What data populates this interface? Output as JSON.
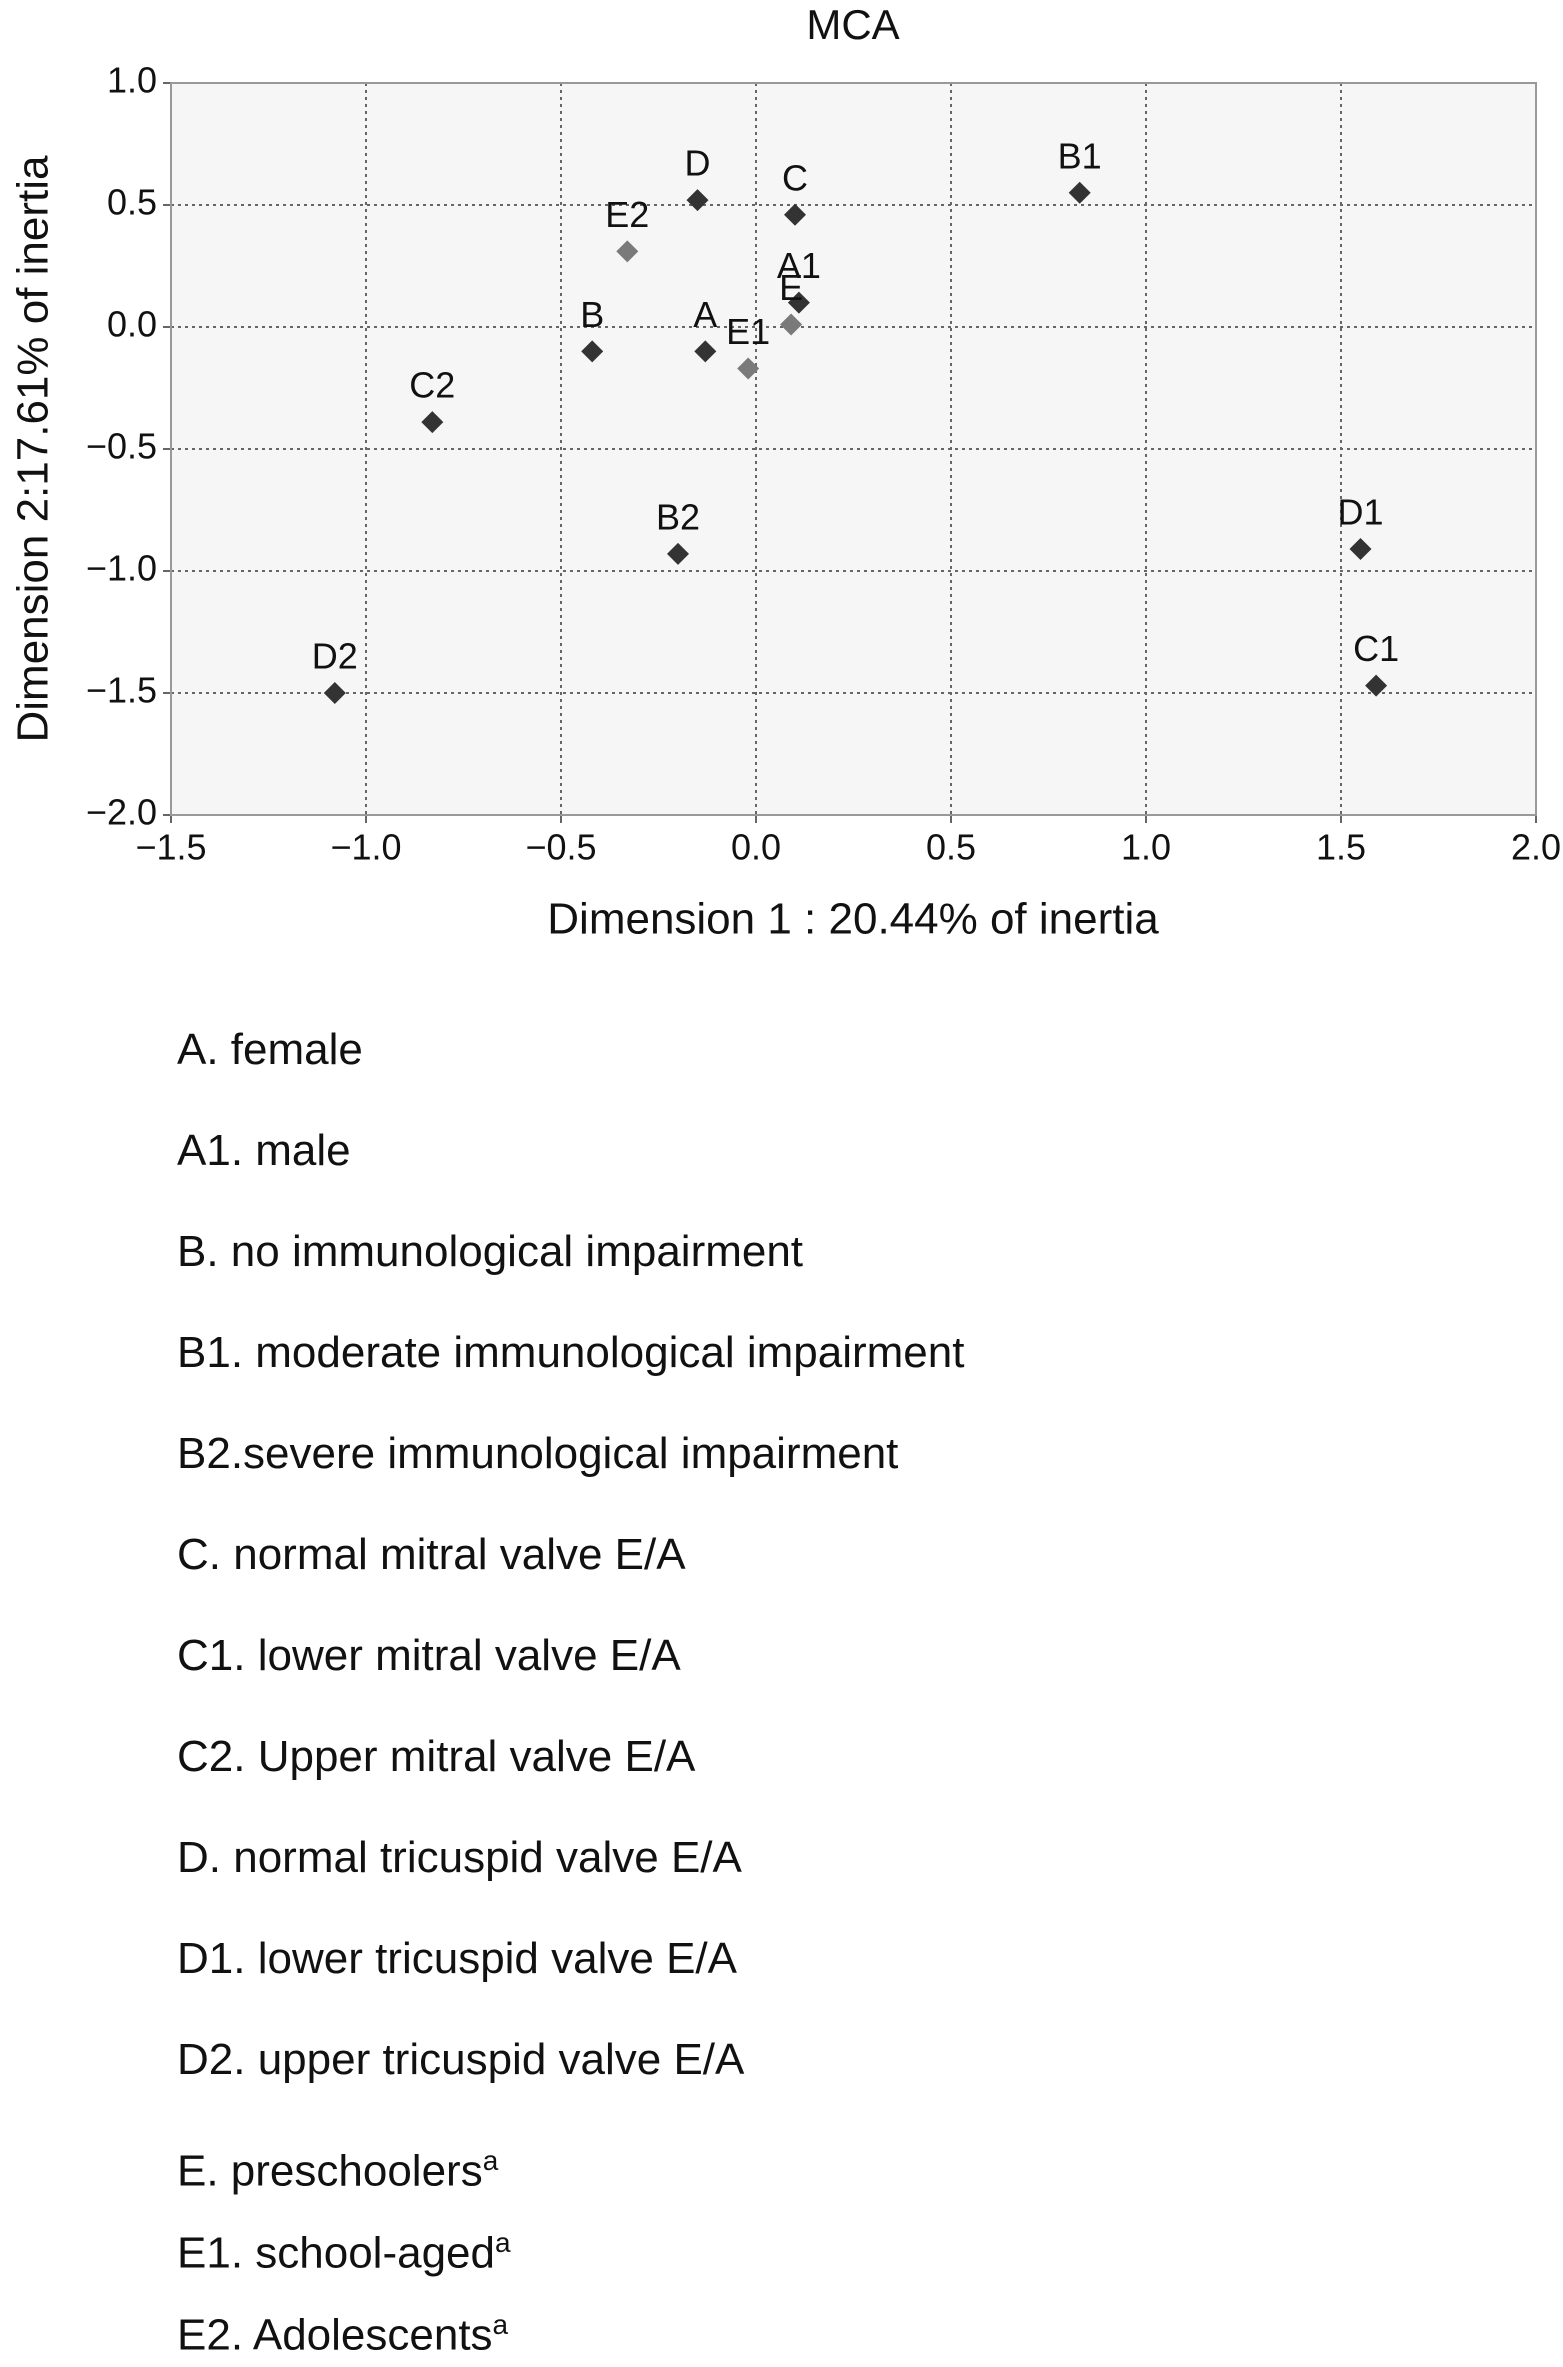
{
  "chart_data": {
    "type": "scatter",
    "title": "MCA",
    "x_label": "Dimension 1 : 20.44% of inertia",
    "y_label": "Dimension 2:17.61% of inertia",
    "labels": [
      "A",
      "A1",
      "B",
      "B1",
      "B2",
      "C",
      "C1",
      "C2",
      "D",
      "D1",
      "D2",
      "E",
      "E1",
      "E2"
    ],
    "x": [
      -0.13,
      0.11,
      -0.42,
      0.83,
      -0.2,
      0.1,
      1.59,
      -0.83,
      -0.15,
      1.55,
      -1.08,
      0.09,
      -0.02,
      -0.33
    ],
    "values": [
      -0.1,
      0.1,
      -0.1,
      0.55,
      -0.93,
      0.46,
      -1.47,
      -0.39,
      0.52,
      -0.91,
      -1.5,
      0.01,
      -0.17,
      0.31
    ],
    "colors": [
      "#333333",
      "#333333",
      "#333333",
      "#333333",
      "#333333",
      "#333333",
      "#333333",
      "#333333",
      "#333333",
      "#333333",
      "#333333",
      "#7a7a7a",
      "#7a7a7a",
      "#7a7a7a"
    ],
    "xlim": [
      -1.5,
      2.0
    ],
    "xticks": [
      {
        "value": -1.5,
        "label": "−1.5"
      },
      {
        "value": -1.0,
        "label": "−1.0"
      },
      {
        "value": -0.5,
        "label": "−0.5"
      },
      {
        "value": 0,
        "label": "0.0"
      },
      0.5,
      {
        "value": 1.0,
        "label": "1.0"
      },
      1.5,
      {
        "value": 2.0,
        "label": "2.0"
      }
    ],
    "ylim": [
      -2.0,
      1.0
    ],
    "yticks": [
      {
        "value": -2.0,
        "label": "−2.0"
      },
      {
        "value": -1.5,
        "label": "−1.5"
      },
      {
        "value": -1.0,
        "label": "−1.0"
      },
      {
        "value": -0.5,
        "label": "−0.5"
      },
      {
        "value": 0,
        "label": "0.0"
      },
      0.5,
      {
        "value": 1.0,
        "label": "1.0"
      }
    ],
    "grid": true
  },
  "notes": [
    {
      "text": "A. female"
    },
    {
      "text": "A1. male"
    },
    {
      "text": "B. no immunological impairment"
    },
    {
      "text": "B1. moderate immunological impairment"
    },
    {
      "text": "B2.severe immunological impairment"
    },
    {
      "text": "C. normal mitral valve E/A"
    },
    {
      "text": "C1. lower mitral valve E/A"
    },
    {
      "text": "C2. Upper mitral valve E/A"
    },
    {
      "text": "D. normal tricuspid valve E/A"
    },
    {
      "text": "D1. lower tricuspid valve E/A"
    },
    {
      "text": "D2. upper tricuspid valve E/A"
    },
    {
      "text": "E. preschoolers",
      "sup": "a"
    },
    {
      "text": "E1. school-aged",
      "sup": "a"
    },
    {
      "text": "E2. Adolescents",
      "sup": "a"
    }
  ]
}
